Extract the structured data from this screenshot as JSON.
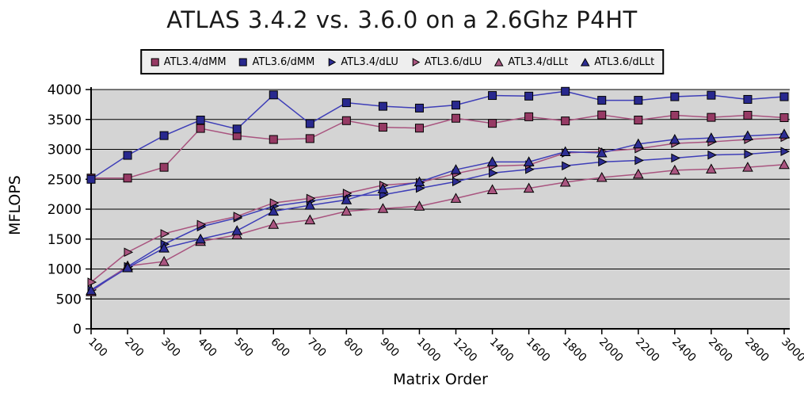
{
  "title": "ATLAS 3.4.2 vs. 3.6.0 on a 2.6Ghz P4HT",
  "legend": {
    "items": [
      {
        "label": "ATL3.4/dMM",
        "marker": "square",
        "color": "#963a64"
      },
      {
        "label": "ATL3.6/dMM",
        "marker": "square",
        "color": "#28288e"
      },
      {
        "label": "ATL3.4/dLU",
        "marker": "triangle-right",
        "color": "#2d2d94"
      },
      {
        "label": "ATL3.6/dLU",
        "marker": "triangle-right",
        "color": "#aa5580"
      },
      {
        "label": "ATL3.4/dLLt",
        "marker": "triangle-up",
        "color": "#aa5580"
      },
      {
        "label": "ATL3.6/dLLt",
        "marker": "triangle-up",
        "color": "#2d2d94"
      }
    ]
  },
  "chart_data": {
    "type": "line",
    "title": "ATLAS 3.4.2 vs. 3.6.0 on a 2.6Ghz P4HT",
    "xlabel": "Matrix Order",
    "ylabel": "MFLOPS",
    "x": [
      100,
      200,
      300,
      400,
      500,
      600,
      700,
      800,
      900,
      1000,
      1200,
      1400,
      1600,
      1800,
      2000,
      2200,
      2400,
      2600,
      2800,
      3000
    ],
    "xtick_labels": [
      "100",
      "200",
      "300",
      "400",
      "500",
      "600",
      "700",
      "800",
      "900",
      "1000",
      "1200",
      "1400",
      "1600",
      "1800",
      "2000",
      "2200",
      "2400",
      "2600",
      "2800",
      "3000"
    ],
    "ylim": [
      0,
      4000
    ],
    "ytick_step": 500,
    "ytick_labels": [
      "0",
      "500",
      "1000",
      "1500",
      "2000",
      "2500",
      "3000",
      "3500",
      "4000"
    ],
    "grid": "horizontal",
    "legend_position": "top-center",
    "plot_bg": "#d4d4d4",
    "series": [
      {
        "name": "ATL3.4/dMM",
        "marker": "square",
        "color": "#963a64",
        "line_color": "#a9547f",
        "values": [
          2520,
          2520,
          2700,
          3350,
          3230,
          3165,
          3180,
          3480,
          3370,
          3355,
          3520,
          3435,
          3545,
          3475,
          3575,
          3490,
          3570,
          3535,
          3570,
          3530
        ]
      },
      {
        "name": "ATL3.6/dMM",
        "marker": "square",
        "color": "#28288e",
        "line_color": "#3e3eb8",
        "values": [
          2500,
          2900,
          3230,
          3490,
          3340,
          3910,
          3430,
          3780,
          3720,
          3690,
          3740,
          3900,
          3890,
          3970,
          3820,
          3820,
          3880,
          3905,
          3835,
          3880
        ]
      },
      {
        "name": "ATL3.4/dLU",
        "marker": "triangle-right",
        "color": "#2d2d94",
        "line_color": "#3e3eb8",
        "values": [
          650,
          1040,
          1415,
          1705,
          1855,
          2050,
          2135,
          2225,
          2240,
          2350,
          2460,
          2605,
          2665,
          2725,
          2790,
          2815,
          2855,
          2905,
          2920,
          2965
        ]
      },
      {
        "name": "ATL3.6/dLU",
        "marker": "triangle-right",
        "color": "#aa5580",
        "line_color": "#a9547f",
        "values": [
          780,
          1280,
          1590,
          1745,
          1880,
          2105,
          2180,
          2265,
          2400,
          2445,
          2595,
          2720,
          2740,
          2940,
          2965,
          3010,
          3100,
          3125,
          3165,
          3200
        ]
      },
      {
        "name": "ATL3.4/dLLt",
        "marker": "triangle-up",
        "color": "#aa5580",
        "line_color": "#a9547f",
        "values": [
          620,
          1050,
          1125,
          1460,
          1570,
          1745,
          1820,
          1965,
          2010,
          2050,
          2180,
          2325,
          2350,
          2450,
          2530,
          2585,
          2650,
          2670,
          2700,
          2745
        ]
      },
      {
        "name": "ATL3.6/dLLt",
        "marker": "triangle-up",
        "color": "#2d2d94",
        "line_color": "#3e3eb8",
        "values": [
          640,
          1020,
          1350,
          1500,
          1640,
          1965,
          2065,
          2155,
          2340,
          2455,
          2660,
          2790,
          2790,
          2960,
          2940,
          3090,
          3165,
          3190,
          3225,
          3255
        ]
      }
    ]
  }
}
